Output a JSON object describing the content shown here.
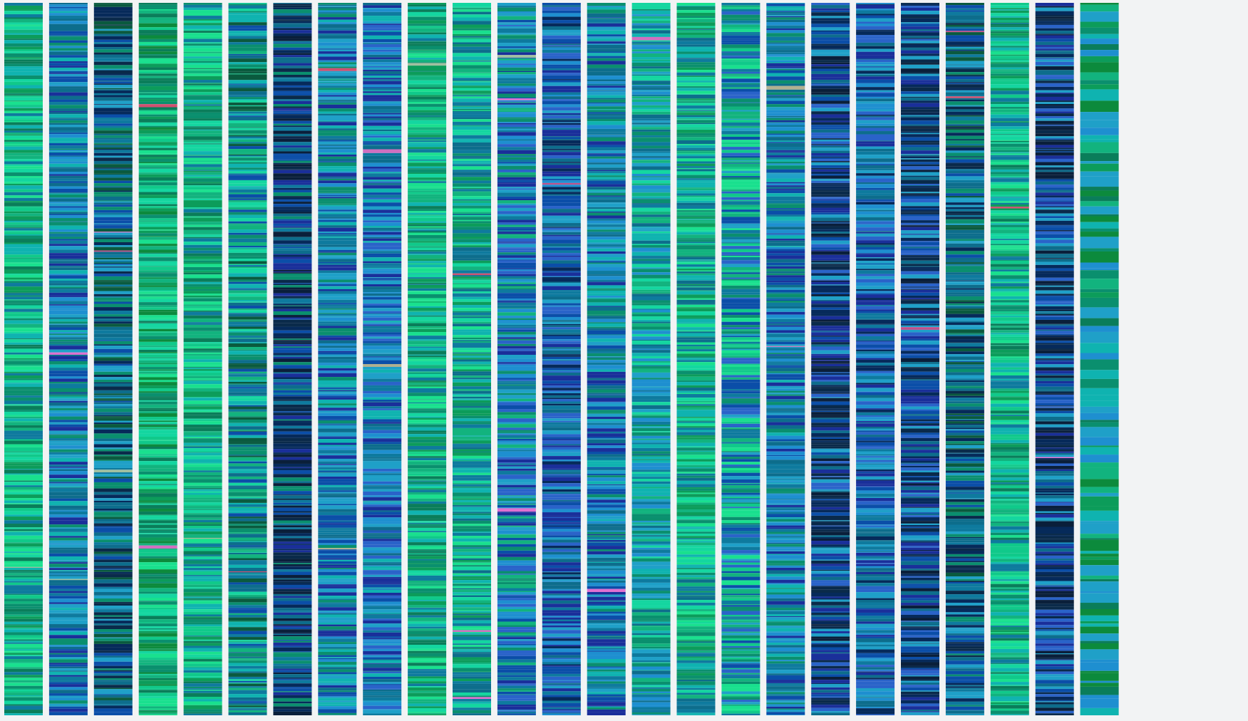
{
  "background_color": "#f2f3f4",
  "column_count": 25,
  "palette": [
    "#0a8f6e",
    "#0d6d8c",
    "#12b37e",
    "#0b4ea8",
    "#10c98a",
    "#0e7a9e",
    "#1a2f9a",
    "#0a5a3e",
    "#14d6a0",
    "#0a2a4a",
    "#1fa0c8",
    "#0c9c5a",
    "#2a63c9",
    "#0fb3b0",
    "#062a5a",
    "#0a7d5a",
    "#1e8fd0",
    "#19e08e",
    "#0a1f3a",
    "#0c8a3c"
  ],
  "accent_colors": [
    "#c0508a",
    "#d070c0",
    "#b0b090",
    "#d05070",
    "#e070d0",
    "#a0c0a0"
  ],
  "column_styles": [
    "green-teal",
    "teal-blue",
    "teal-navy",
    "green",
    "green-teal",
    "teal-mixed",
    "navy-teal",
    "teal-blue",
    "blue-teal",
    "green-teal",
    "teal-green",
    "blue-green",
    "blue",
    "teal-blue",
    "teal",
    "teal-green",
    "green-blue",
    "teal-blue",
    "navy-blue",
    "blue",
    "navy-blue",
    "teal-navy",
    "green-teal",
    "navy-blue",
    "green-solid"
  ]
}
